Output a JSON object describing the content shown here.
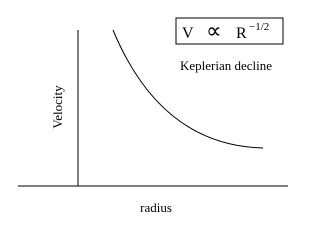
{
  "formula": {
    "variable": "V",
    "relation": "∝",
    "base": "R",
    "exponent": "−1/2"
  },
  "annotation": "Keplerian decline",
  "axes": {
    "y_label": "Velocity",
    "x_label": "radius"
  }
}
